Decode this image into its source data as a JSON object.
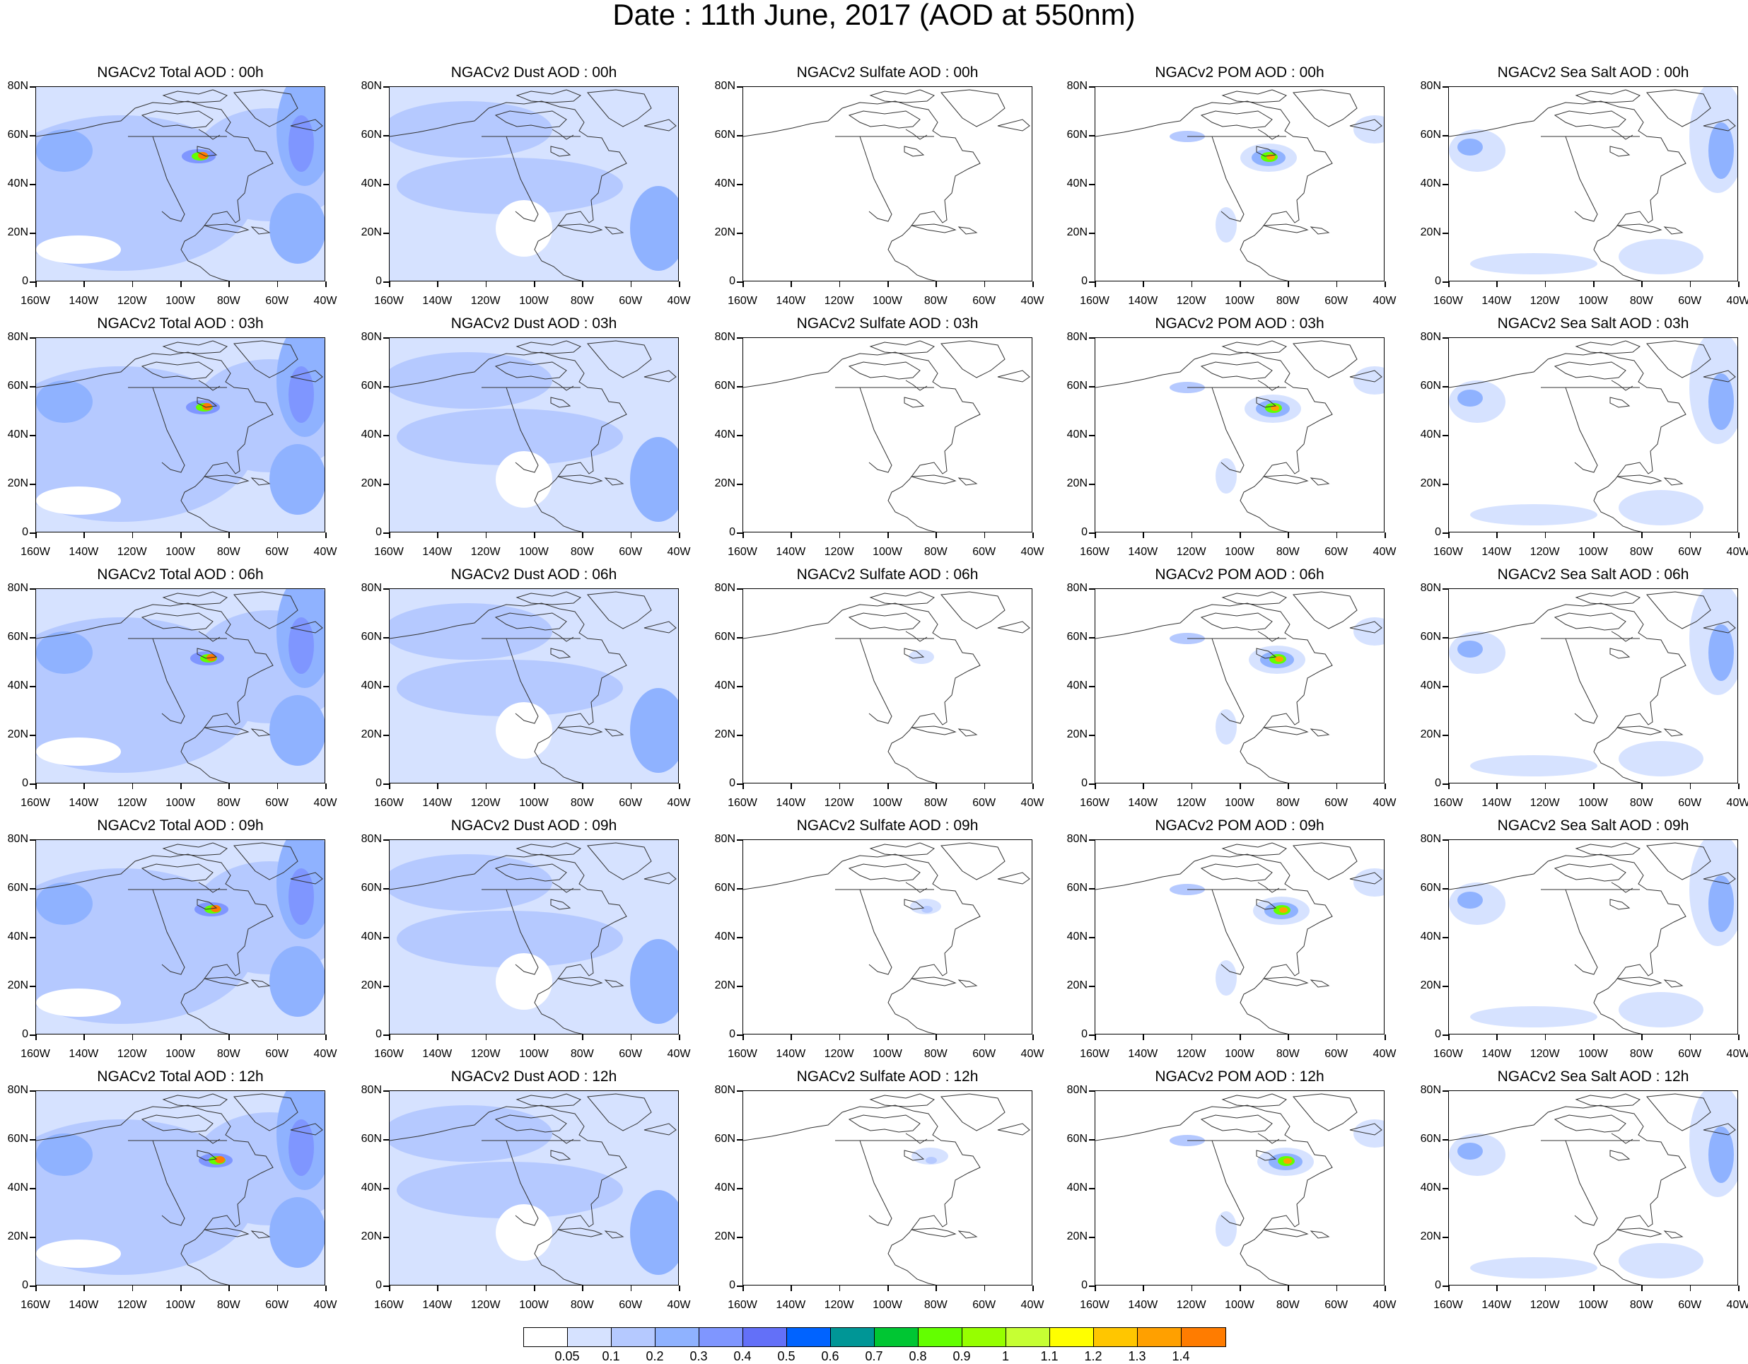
{
  "title": "Date : 11th June, 2017 (AOD at 550nm)",
  "columns": [
    "total",
    "dust",
    "sulfate",
    "pom",
    "seasalt"
  ],
  "rows": [
    "00h",
    "03h",
    "06h",
    "09h",
    "12h"
  ],
  "panel_titles": [
    [
      "NGACv2 Total AOD : 00h",
      "NGACv2 Dust AOD : 00h",
      "NGACv2 Sulfate AOD : 00h",
      "NGACv2 POM AOD : 00h",
      "NGACv2 Sea Salt AOD : 00h"
    ],
    [
      "NGACv2 Total AOD : 03h",
      "NGACv2 Dust AOD : 03h",
      "NGACv2 Sulfate AOD : 03h",
      "NGACv2 POM AOD : 03h",
      "NGACv2 Sea Salt AOD : 03h"
    ],
    [
      "NGACv2 Total AOD : 06h",
      "NGACv2 Dust AOD : 06h",
      "NGACv2 Sulfate AOD : 06h",
      "NGACv2 POM AOD : 06h",
      "NGACv2 Sea Salt AOD : 06h"
    ],
    [
      "NGACv2 Total AOD : 09h",
      "NGACv2 Dust AOD : 09h",
      "NGACv2 Sulfate AOD : 09h",
      "NGACv2 POM AOD : 09h",
      "NGACv2 Sea Salt  AOD : 09h"
    ],
    [
      "NGACv2 Total AOD  : 12h",
      "NGACv2 Dust AOD : 12h",
      "NGACv2 Sulfate AOD : 12h",
      "NGACv2 POM  AOD : 12h",
      "NGACv2 Sea Salt  AOD : 12h"
    ]
  ],
  "lat_labels": [
    "80N",
    "60N",
    "40N",
    "20N",
    "0"
  ],
  "lon_labels": [
    "160W",
    "140W",
    "120W",
    "100W",
    "80W",
    "60W",
    "40W"
  ],
  "colorbar": {
    "labels": [
      "0.05",
      "0.1",
      "0.2",
      "0.3",
      "0.4",
      "0.5",
      "0.6",
      "0.7",
      "0.8",
      "0.9",
      "1",
      "1.1",
      "1.2",
      "1.3",
      "1.4"
    ],
    "colors": [
      "#ffffff",
      "#d6e2ff",
      "#b5c9ff",
      "#8fb2ff",
      "#7f96ff",
      "#6370f8",
      "#0063ff",
      "#009696",
      "#00c633",
      "#63ff00",
      "#96ff00",
      "#c6ff33",
      "#ffff00",
      "#ffc600",
      "#ffa000",
      "#ff7c00",
      "#ff1900"
    ]
  }
}
